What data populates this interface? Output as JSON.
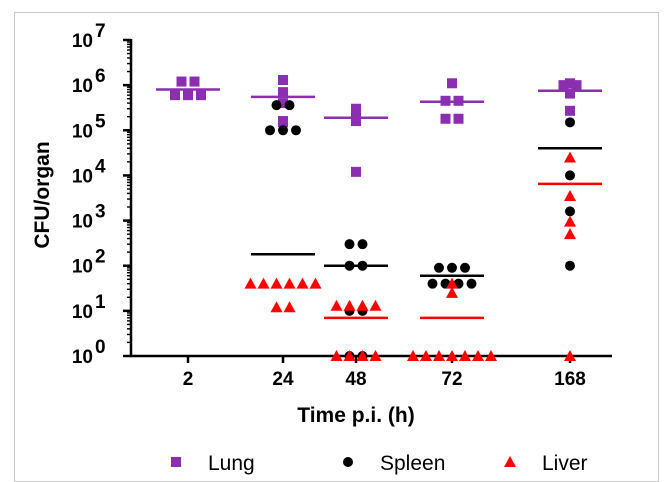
{
  "chart_data": {
    "type": "scatter",
    "title": "",
    "xlabel": "Time p.i. (h)",
    "ylabel": "CFU/organ",
    "y_scale": "log",
    "ylim": [
      1,
      10000000
    ],
    "y_ticks": [
      {
        "value": 1,
        "base": "10",
        "exp": "0"
      },
      {
        "value": 10,
        "base": "10",
        "exp": "1"
      },
      {
        "value": 100,
        "base": "10",
        "exp": "2"
      },
      {
        "value": 1000,
        "base": "10",
        "exp": "3"
      },
      {
        "value": 10000,
        "base": "10",
        "exp": "4"
      },
      {
        "value": 100000,
        "base": "10",
        "exp": "5"
      },
      {
        "value": 1000000,
        "base": "10",
        "exp": "6"
      },
      {
        "value": 10000000,
        "base": "10",
        "exp": "7"
      }
    ],
    "categories": [
      "2",
      "24",
      "48",
      "72",
      "168"
    ],
    "legend_position": "bottom",
    "series": [
      {
        "name": "Lung",
        "marker": "square",
        "color": "#8B2FB0",
        "points": [
          [
            [
              1200000,
              1200000,
              600000,
              600000,
              600000
            ]
          ],
          [
            [
              1300000,
              700000,
              400000,
              150000,
              160000
            ]
          ],
          [
            [
              300000,
              170000,
              280000,
              160000,
              12000
            ]
          ],
          [
            [
              1100000,
              450000,
              180000,
              180000,
              450000
            ]
          ],
          [
            [
              1100000,
              650000,
              1000000,
              1000000,
              270000
            ]
          ]
        ],
        "means": [
          800000,
          550000,
          190000,
          430000,
          750000
        ]
      },
      {
        "name": "Spleen",
        "marker": "circle",
        "color": "#000000",
        "points": [
          [
            []
          ],
          [
            [
              360000,
              360000,
              100000,
              100000,
              100000
            ]
          ],
          [
            [
              300,
              300,
              100,
              100,
              10,
              10,
              1,
              1
            ]
          ],
          [
            [
              90,
              90,
              90,
              40,
              40,
              40,
              40
            ]
          ],
          [
            [
              150000,
              10000,
              1600,
              100
            ]
          ]
        ],
        "means": [
          null,
          180,
          100,
          60,
          40000
        ]
      },
      {
        "name": "Liver",
        "marker": "triangle",
        "color": "#FF0000",
        "points": [
          [
            []
          ],
          [
            [
              40,
              40,
              40,
              40,
              40,
              40,
              12,
              12
            ]
          ],
          [
            [
              13,
              13,
              13,
              13,
              1,
              1,
              1,
              1
            ]
          ],
          [
            [
              40,
              25,
              1,
              1,
              1,
              1,
              1,
              1,
              1
            ]
          ],
          [
            [
              25000,
              3500,
              950,
              500,
              1
            ]
          ]
        ],
        "means": [
          null,
          null,
          7,
          7,
          6500
        ]
      }
    ]
  }
}
